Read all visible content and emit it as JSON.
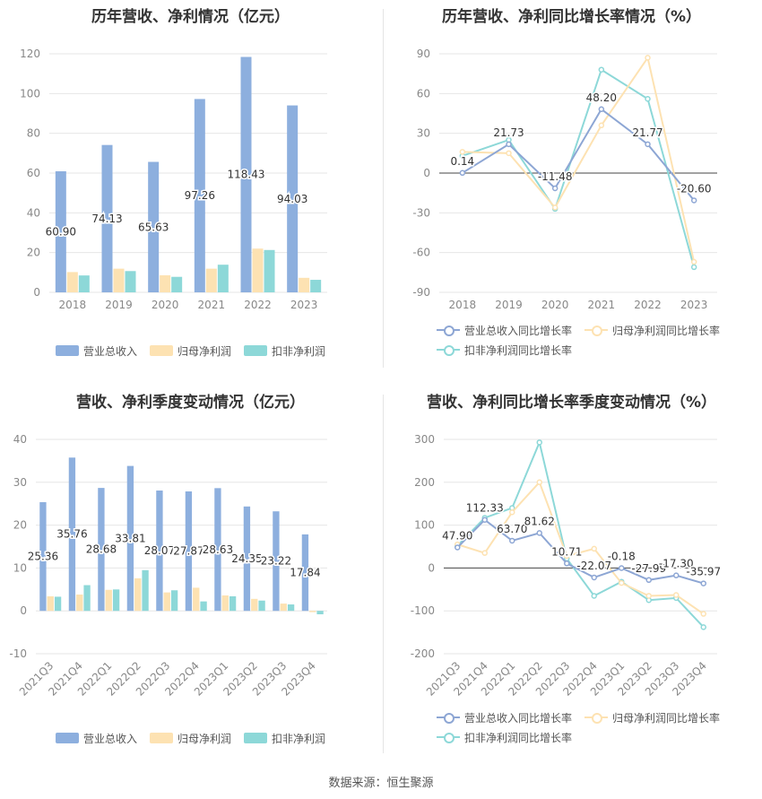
{
  "source": "数据来源：恒生聚源",
  "chart_data": [
    {
      "type": "bar",
      "title": "历年营收、净利情况（亿元）",
      "categories": [
        "2018",
        "2019",
        "2020",
        "2021",
        "2022",
        "2023"
      ],
      "ylim": [
        0,
        120
      ],
      "yticks": [
        0,
        20,
        40,
        60,
        80,
        100,
        120
      ],
      "grid": true,
      "legend": "bottom",
      "series": [
        {
          "name": "营业总收入",
          "color": "#8dafde",
          "values": [
            60.9,
            74.13,
            65.63,
            97.26,
            118.43,
            94.03
          ],
          "labels": [
            "60.90",
            "74.13",
            "65.63",
            "97.26",
            "118.43",
            "94.03"
          ]
        },
        {
          "name": "归母净利润",
          "color": "#fde2b2",
          "values": [
            10.2,
            11.9,
            8.6,
            11.9,
            22.0,
            7.3
          ]
        },
        {
          "name": "扣非净利润",
          "color": "#8dd8d8",
          "values": [
            8.5,
            10.7,
            7.8,
            13.9,
            21.3,
            6.3
          ]
        }
      ]
    },
    {
      "type": "line",
      "title": "历年营收、净利同比增长率情况（%）",
      "categories": [
        "2018",
        "2019",
        "2020",
        "2021",
        "2022",
        "2023"
      ],
      "ylim": [
        -90,
        90
      ],
      "yticks": [
        -90,
        -60,
        -30,
        0,
        30,
        60,
        90
      ],
      "grid": true,
      "legend": "bottom",
      "series": [
        {
          "name": "营业总收入同比增长率",
          "color": "#8da6d4",
          "values": [
            0.14,
            21.73,
            -11.48,
            48.2,
            21.77,
            -20.6
          ],
          "labels": [
            "0.14",
            "21.73",
            "-11.48",
            "48.20",
            "21.77",
            "-20.60"
          ]
        },
        {
          "name": "归母净利润同比增长率",
          "color": "#fde2b2",
          "values": [
            16,
            15,
            -26,
            36,
            87,
            -67
          ]
        },
        {
          "name": "扣非净利润同比增长率",
          "color": "#8dd8d8",
          "values": [
            13,
            25,
            -27,
            78,
            56,
            -71
          ]
        }
      ]
    },
    {
      "type": "bar",
      "title": "营收、净利季度变动情况（亿元）",
      "categories": [
        "2021Q3",
        "2021Q4",
        "2022Q1",
        "2022Q2",
        "2022Q3",
        "2022Q4",
        "2023Q1",
        "2023Q2",
        "2023Q3",
        "2023Q4"
      ],
      "ylim": [
        -10,
        40
      ],
      "yticks": [
        -10,
        0,
        10,
        20,
        30,
        40
      ],
      "grid": true,
      "legend": "bottom",
      "series": [
        {
          "name": "营业总收入",
          "color": "#8dafde",
          "values": [
            25.36,
            35.76,
            28.68,
            33.81,
            28.07,
            27.87,
            28.63,
            24.35,
            23.22,
            17.84
          ],
          "labels": [
            "25.36",
            "35.76",
            "28.68",
            "33.81",
            "28.07",
            "27.87",
            "28.63",
            "24.35",
            "23.22",
            "17.84"
          ]
        },
        {
          "name": "归母净利润",
          "color": "#fde2b2",
          "values": [
            3.4,
            3.8,
            4.9,
            7.6,
            4.3,
            5.4,
            3.6,
            2.8,
            1.7,
            -0.3
          ]
        },
        {
          "name": "扣非净利润",
          "color": "#8dd8d8",
          "values": [
            3.3,
            6.0,
            5.0,
            9.5,
            4.8,
            2.2,
            3.4,
            2.4,
            1.5,
            -0.8
          ]
        }
      ]
    },
    {
      "type": "line",
      "title": "营收、净利同比增长率季度变动情况（%）",
      "categories": [
        "2021Q3",
        "2021Q4",
        "2022Q1",
        "2022Q2",
        "2022Q3",
        "2022Q4",
        "2023Q1",
        "2023Q2",
        "2023Q3",
        "2023Q4"
      ],
      "ylim": [
        -200,
        300
      ],
      "yticks": [
        -200,
        -100,
        0,
        100,
        200,
        300
      ],
      "grid": true,
      "legend": "bottom",
      "series": [
        {
          "name": "营业总收入同比增长率",
          "color": "#8da6d4",
          "values": [
            47.9,
            112.33,
            63.7,
            81.62,
            10.71,
            -22.07,
            -0.18,
            -27.99,
            -17.3,
            -35.97
          ],
          "labels": [
            "47.90",
            "112.33",
            "63.70",
            "81.62",
            "10.71",
            "-22.07",
            "-0.18",
            "-27.99",
            "-17.30",
            "-35.97"
          ]
        },
        {
          "name": "归母净利润同比增长率",
          "color": "#fde2b2",
          "values": [
            55,
            35,
            130,
            200,
            28,
            45,
            -35,
            -65,
            -63,
            -107
          ]
        },
        {
          "name": "扣非净利润同比增长率",
          "color": "#8dd8d8",
          "values": [
            52,
            117,
            140,
            293,
            22,
            -65,
            -32,
            -75,
            -70,
            -138
          ]
        }
      ]
    }
  ]
}
